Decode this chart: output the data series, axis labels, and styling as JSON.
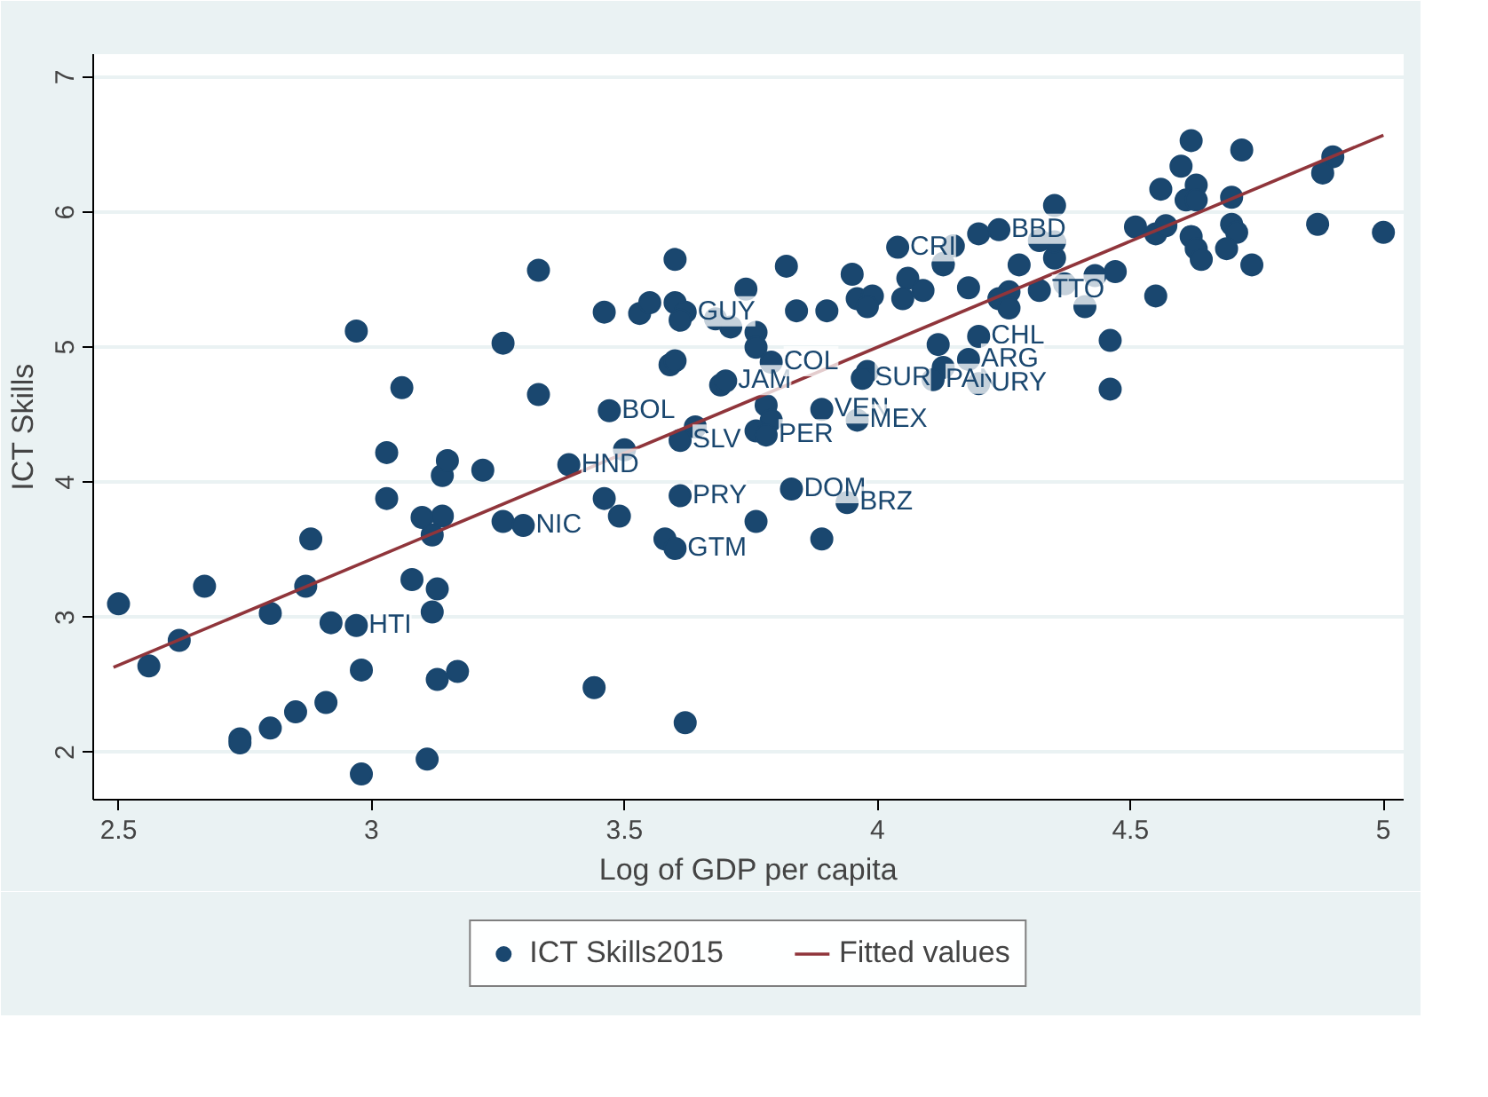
{
  "chart_data": {
    "type": "scatter",
    "xlabel": "Log of GDP per capita",
    "ylabel": "ICT Skills",
    "xlim": [
      2.45,
      5.04
    ],
    "ylim": [
      1.65,
      7.17
    ],
    "xticks": [
      2.5,
      3,
      3.5,
      4,
      4.5,
      5
    ],
    "yticks": [
      2,
      3,
      4,
      5,
      6,
      7
    ],
    "grid": "y",
    "legend": "bottom",
    "series": [
      {
        "name": "ICT Skills2015",
        "marker": "circle",
        "color": "#1a476f",
        "x": [
          2.5,
          2.56,
          2.62,
          2.67,
          2.8,
          2.74,
          2.74,
          2.8,
          2.85,
          2.91,
          2.87,
          2.88,
          2.92,
          2.97,
          2.98,
          2.98,
          2.97,
          3.06,
          3.03,
          3.03,
          3.1,
          3.14,
          3.12,
          3.14,
          3.15,
          3.22,
          3.08,
          3.13,
          3.12,
          3.13,
          3.17,
          3.11,
          3.26,
          3.33,
          3.39,
          3.47,
          3.46,
          3.49,
          3.26,
          3.3,
          3.44,
          3.33,
          3.6,
          3.46,
          3.53,
          3.55,
          3.6,
          3.62,
          3.61,
          3.68,
          3.71,
          3.74,
          3.76,
          3.76,
          3.79,
          3.82,
          3.84,
          3.9,
          3.95,
          4.04,
          4.06,
          4.09,
          3.96,
          3.99,
          3.98,
          4.05,
          4.13,
          3.59,
          3.6,
          3.69,
          3.7,
          3.64,
          3.61,
          3.5,
          3.78,
          3.79,
          3.76,
          3.78,
          3.89,
          3.96,
          3.98,
          3.97,
          4.12,
          4.13,
          4.11,
          3.61,
          3.83,
          3.94,
          3.76,
          3.89,
          3.58,
          3.6,
          3.62,
          4.62,
          4.72,
          4.6,
          4.9,
          4.88,
          4.56,
          4.63,
          4.61,
          4.63,
          4.7,
          4.35,
          4.51,
          4.55,
          4.57,
          4.7,
          4.71,
          4.87,
          5.0,
          4.62,
          4.63,
          4.64,
          4.69,
          4.74,
          4.55,
          4.46,
          4.46,
          4.47,
          4.43,
          4.41,
          4.37,
          4.32,
          4.35,
          4.35,
          4.32,
          4.28,
          4.24,
          4.2,
          4.15,
          4.13,
          4.18,
          4.26,
          4.24,
          4.26,
          4.2,
          4.18,
          4.2
        ],
        "values": [
          3.1,
          2.64,
          2.83,
          3.23,
          3.03,
          2.1,
          2.07,
          2.18,
          2.3,
          2.37,
          3.23,
          3.58,
          2.96,
          2.94,
          2.61,
          1.84,
          5.12,
          4.7,
          4.22,
          3.88,
          3.74,
          3.75,
          3.61,
          4.05,
          4.16,
          4.09,
          3.28,
          3.21,
          3.04,
          2.54,
          2.6,
          1.95,
          5.03,
          4.65,
          4.13,
          4.53,
          3.88,
          3.75,
          3.71,
          3.68,
          2.48,
          5.57,
          5.65,
          5.26,
          5.25,
          5.33,
          5.33,
          5.26,
          5.2,
          5.21,
          5.15,
          5.43,
          5.11,
          5.0,
          4.89,
          5.6,
          5.27,
          5.27,
          5.54,
          5.74,
          5.51,
          5.42,
          5.36,
          5.38,
          5.3,
          5.36,
          5.61,
          4.87,
          4.9,
          4.72,
          4.75,
          4.41,
          4.31,
          4.24,
          4.57,
          4.46,
          4.38,
          4.35,
          4.54,
          4.46,
          4.82,
          4.77,
          5.02,
          4.85,
          4.76,
          3.9,
          3.95,
          3.85,
          3.71,
          3.58,
          3.58,
          3.51,
          2.22,
          6.53,
          6.46,
          6.34,
          6.41,
          6.29,
          6.17,
          6.2,
          6.09,
          6.09,
          6.11,
          6.05,
          5.89,
          5.84,
          5.9,
          5.91,
          5.85,
          5.91,
          5.85,
          5.82,
          5.73,
          5.65,
          5.73,
          5.61,
          5.38,
          5.05,
          4.69,
          5.56,
          5.53,
          5.3,
          5.47,
          5.42,
          5.66,
          5.78,
          5.79,
          5.61,
          5.87,
          5.84,
          5.75,
          5.62,
          5.44,
          5.41,
          5.36,
          5.29,
          5.08,
          4.91,
          4.73
        ]
      },
      {
        "name": "Fitted values",
        "type": "line",
        "color": "#90353b",
        "x": [
          2.49,
          5.0
        ],
        "values": [
          2.63,
          6.57
        ]
      }
    ],
    "annotations": [
      {
        "text": "HTI",
        "x": 2.97,
        "y": 2.94
      },
      {
        "text": "NIC",
        "x": 3.3,
        "y": 3.68
      },
      {
        "text": "HND",
        "x": 3.39,
        "y": 4.13
      },
      {
        "text": "BOL",
        "x": 3.47,
        "y": 4.53
      },
      {
        "text": "SLV",
        "x": 3.61,
        "y": 4.31
      },
      {
        "text": "GTM",
        "x": 3.6,
        "y": 3.51
      },
      {
        "text": "PRY",
        "x": 3.61,
        "y": 3.9
      },
      {
        "text": "GUY",
        "x": 3.62,
        "y": 5.26
      },
      {
        "text": "JAM",
        "x": 3.7,
        "y": 4.75
      },
      {
        "text": "COL",
        "x": 3.79,
        "y": 4.89
      },
      {
        "text": "PER",
        "x": 3.78,
        "y": 4.35
      },
      {
        "text": "DOM",
        "x": 3.83,
        "y": 3.95
      },
      {
        "text": "VEN",
        "x": 3.89,
        "y": 4.54
      },
      {
        "text": "BRZ",
        "x": 3.94,
        "y": 3.85
      },
      {
        "text": "MEX",
        "x": 3.96,
        "y": 4.46
      },
      {
        "text": "SUR",
        "x": 3.97,
        "y": 4.77
      },
      {
        "text": "CRI",
        "x": 4.04,
        "y": 5.74
      },
      {
        "text": "PAN",
        "x": 4.11,
        "y": 4.76
      },
      {
        "text": "CHL",
        "x": 4.2,
        "y": 5.08
      },
      {
        "text": "ARG",
        "x": 4.18,
        "y": 4.91
      },
      {
        "text": "URY",
        "x": 4.2,
        "y": 4.73
      },
      {
        "text": "BBD",
        "x": 4.24,
        "y": 5.87
      },
      {
        "text": "TTO",
        "x": 4.32,
        "y": 5.42
      }
    ]
  }
}
